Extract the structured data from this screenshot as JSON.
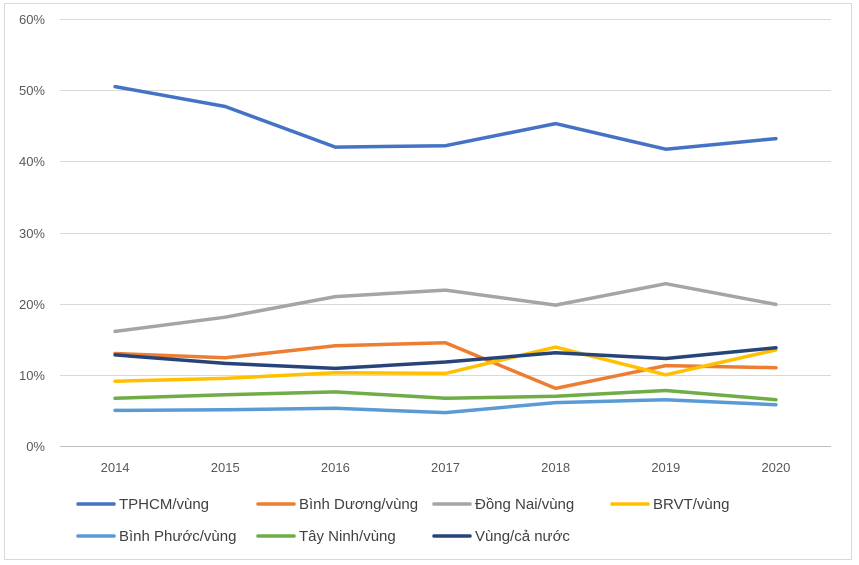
{
  "chart_data": {
    "type": "line",
    "title": "",
    "xlabel": "",
    "ylabel": "",
    "x": [
      "2014",
      "2015",
      "2016",
      "2017",
      "2018",
      "2019",
      "2020"
    ],
    "ylim": [
      0,
      0.6
    ],
    "yticks": [
      {
        "value": 0,
        "label": "0%"
      },
      {
        "value": 0.1,
        "label": "10%"
      },
      {
        "value": 0.2,
        "label": "20%"
      },
      {
        "value": 0.3,
        "label": "30%"
      },
      {
        "value": 0.4,
        "label": "40%"
      },
      {
        "value": 0.5,
        "label": "50%"
      },
      {
        "value": 0.6,
        "label": "60%"
      }
    ],
    "grid": "horizontal",
    "legend_position": "bottom",
    "series": [
      {
        "name": "TPHCM/vùng",
        "color": "#4472C4",
        "values": [
          0.505,
          0.477,
          0.42,
          0.422,
          0.453,
          0.417,
          0.432
        ]
      },
      {
        "name": "Bình Dương/vùng",
        "color": "#ED7D31",
        "values": [
          0.13,
          0.124,
          0.141,
          0.145,
          0.081,
          0.113,
          0.11
        ]
      },
      {
        "name": "Đồng Nai/vùng",
        "color": "#A5A5A5",
        "values": [
          0.161,
          0.181,
          0.21,
          0.219,
          0.198,
          0.228,
          0.199
        ]
      },
      {
        "name": "BRVT/vùng",
        "color": "#FFC000",
        "values": [
          0.091,
          0.095,
          0.103,
          0.102,
          0.139,
          0.1,
          0.135
        ]
      },
      {
        "name": "Bình Phước/vùng",
        "color": "#5B9BD5",
        "values": [
          0.05,
          0.051,
          0.053,
          0.047,
          0.061,
          0.065,
          0.058
        ]
      },
      {
        "name": "Tây Ninh/vùng",
        "color": "#70AD47",
        "values": [
          0.067,
          0.072,
          0.076,
          0.067,
          0.07,
          0.078,
          0.065
        ]
      },
      {
        "name": "Vùng/cả nước",
        "color": "#264478",
        "values": [
          0.128,
          0.116,
          0.109,
          0.118,
          0.131,
          0.123,
          0.138
        ]
      }
    ]
  }
}
